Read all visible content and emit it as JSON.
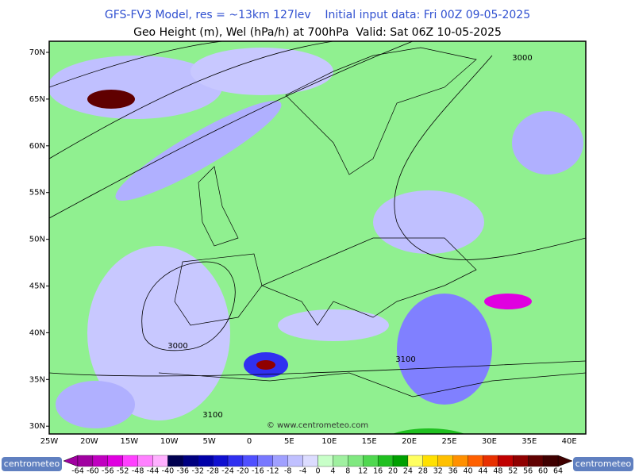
{
  "header": {
    "line1": "GFS-FV3 Model, res = ~13km 127lev    Initial input data: Fri 00Z 09-05-2025",
    "line2": "Geo Height (m), Wel (hPa/h) at 700hPa  Valid: Sat 06Z 10-05-2025"
  },
  "map": {
    "lat_labels": [
      "70N",
      "65N",
      "60N",
      "55N",
      "50N",
      "45N",
      "40N",
      "35N",
      "30N"
    ],
    "lon_labels": [
      "25W",
      "20W",
      "15W",
      "10W",
      "5W",
      "0",
      "5E",
      "10E",
      "15E",
      "20E",
      "25E",
      "30E",
      "35E",
      "40E"
    ],
    "contour_labels": [
      "3000",
      "3000",
      "3100",
      "3100"
    ],
    "watermark": "© www.centrometeo.com"
  },
  "colorbar": {
    "labels": [
      -64,
      -60,
      -56,
      -52,
      -48,
      -44,
      -40,
      -36,
      -32,
      -28,
      -24,
      -20,
      -16,
      -12,
      -8,
      -4,
      0,
      4,
      8,
      12,
      16,
      20,
      24,
      28,
      32,
      36,
      40,
      44,
      48,
      52,
      56,
      60,
      64
    ],
    "colors": [
      "#a000a0",
      "#c000c0",
      "#e000e0",
      "#ff40ff",
      "#ff80ff",
      "#ffb0ff",
      "#000050",
      "#000080",
      "#0000a8",
      "#1010d0",
      "#3030f0",
      "#5050ff",
      "#7878ff",
      "#a0a0ff",
      "#c0c0ff",
      "#dcdcff",
      "#c8ffc8",
      "#a0f0a0",
      "#80e880",
      "#50d850",
      "#20c020",
      "#00a000",
      "#ffff60",
      "#ffe000",
      "#ffc000",
      "#ff9000",
      "#ff6000",
      "#e83000",
      "#c00000",
      "#900000",
      "#600000",
      "#400000"
    ]
  },
  "logo": {
    "left": "centrometeo",
    "right": "centrometeo"
  }
}
